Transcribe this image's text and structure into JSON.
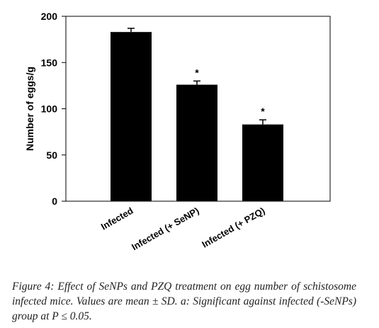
{
  "chart_data": {
    "type": "bar",
    "categories": [
      "Infected",
      "Infected (+ SeNP)",
      "Infected (+ PZQ)"
    ],
    "values": [
      183,
      126,
      83
    ],
    "errors": [
      4,
      4,
      5
    ],
    "significance": [
      "",
      "*",
      "*"
    ],
    "ylabel": "Number of eggs/g",
    "xlabel": "",
    "ylim": [
      0,
      200
    ],
    "yticks": [
      0,
      50,
      100,
      150,
      200
    ],
    "bar_color": "#000000",
    "grid": false
  },
  "caption": {
    "label": "Figure 4:",
    "text": "Effect of SeNPs and PZQ treatment on egg number of schistosome infected mice. Values are mean ± SD. a: Significant against infected (-SeNPs) group at P ≤ 0.05."
  }
}
